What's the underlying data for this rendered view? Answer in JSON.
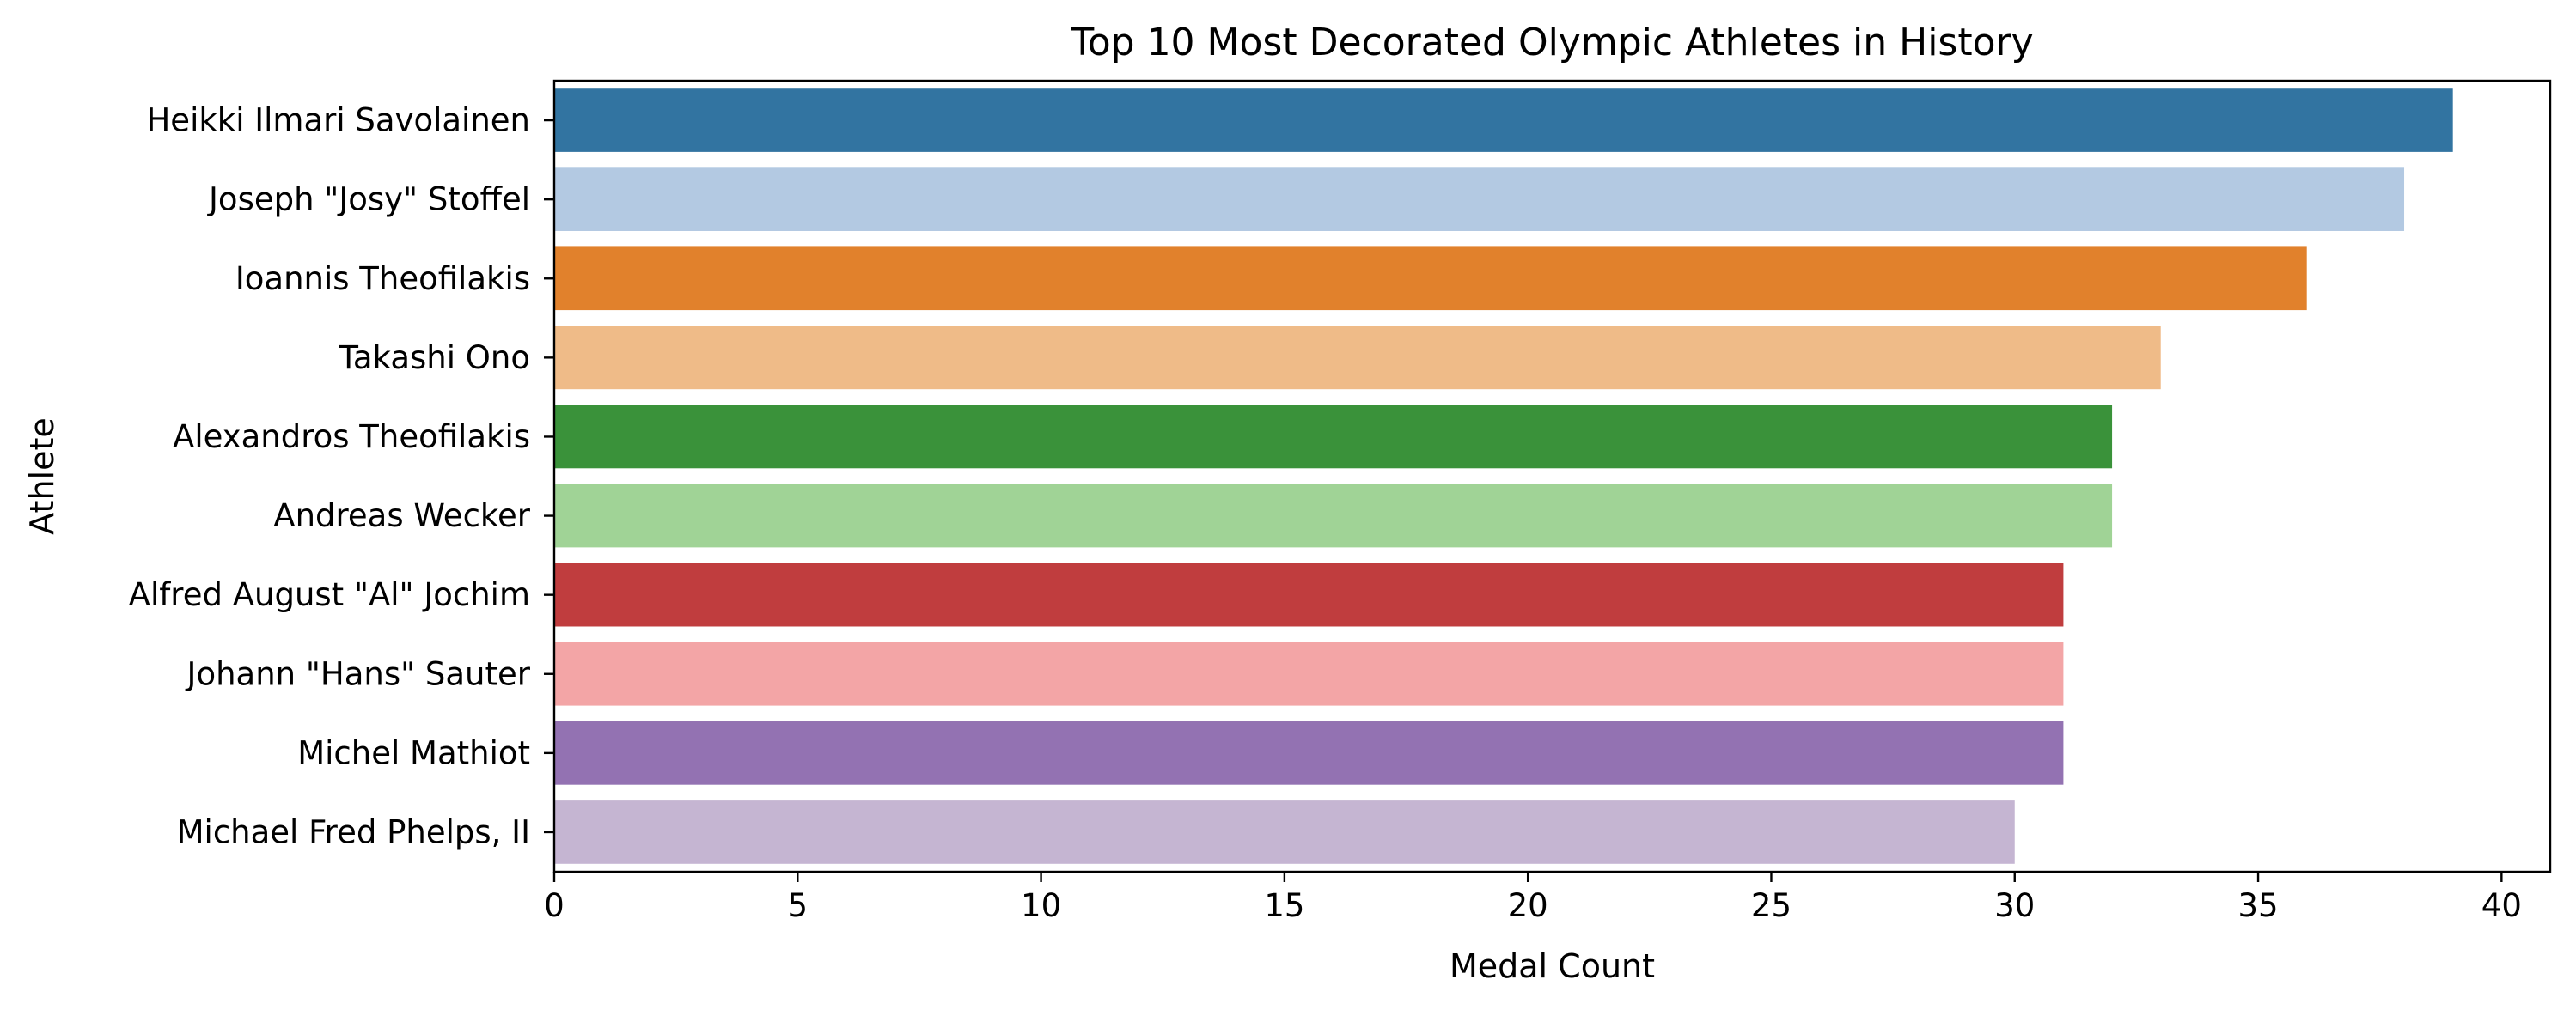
{
  "chart_data": {
    "type": "bar",
    "orientation": "horizontal",
    "title": "Top 10 Most Decorated Olympic Athletes in History",
    "xlabel": "Medal Count",
    "ylabel": "Athlete",
    "xlim": [
      0,
      41
    ],
    "xticks": [
      0,
      5,
      10,
      15,
      20,
      25,
      30,
      35,
      40
    ],
    "grid": false,
    "legend": "none",
    "categories": [
      "Heikki Ilmari Savolainen",
      "Joseph \"Josy\" Stoffel",
      "Ioannis Theofilakis",
      "Takashi Ono",
      "Alexandros Theofilakis",
      "Andreas Wecker",
      "Alfred August \"Al\" Jochim",
      "Johann \"Hans\" Sauter",
      "Michel Mathiot",
      "Michael Fred Phelps, II"
    ],
    "values": [
      39,
      38,
      36,
      33,
      32,
      32,
      31,
      31,
      31,
      30
    ],
    "colors": [
      "#3274a1",
      "#b3c9e2",
      "#e1812c",
      "#efbb88",
      "#3a923a",
      "#a0d396",
      "#c03d3e",
      "#f3a5a6",
      "#9372b2",
      "#c5b5d2"
    ]
  }
}
